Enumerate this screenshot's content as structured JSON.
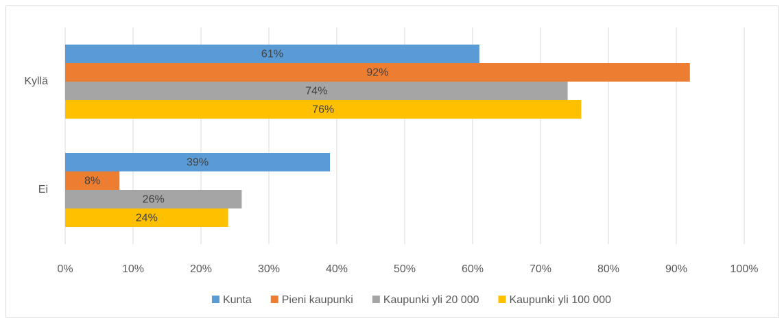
{
  "chart_data": {
    "type": "bar",
    "orientation": "horizontal",
    "categories": [
      "Kyllä",
      "Ei"
    ],
    "series": [
      {
        "name": "Kunta",
        "color": "#5b9bd5",
        "values": [
          61,
          39
        ],
        "value_labels": [
          "61%",
          "39%"
        ]
      },
      {
        "name": "Pieni kaupunki",
        "color": "#ed7d31",
        "values": [
          92,
          8
        ],
        "value_labels": [
          "92%",
          "8%"
        ]
      },
      {
        "name": "Kaupunki yli 20 000",
        "color": "#a5a5a5",
        "values": [
          74,
          26
        ],
        "value_labels": [
          "74%",
          "26%"
        ]
      },
      {
        "name": "Kaupunki yli 100 000",
        "color": "#ffc000",
        "values": [
          76,
          24
        ],
        "value_labels": [
          "76%",
          "24%"
        ]
      }
    ],
    "xlim": [
      0,
      100
    ],
    "xticks": [
      {
        "value": 0,
        "label": "0%"
      },
      {
        "value": 10,
        "label": "10%"
      },
      {
        "value": 20,
        "label": "20%"
      },
      {
        "value": 30,
        "label": "30%"
      },
      {
        "value": 40,
        "label": "40%"
      },
      {
        "value": 50,
        "label": "50%"
      },
      {
        "value": 60,
        "label": "60%"
      },
      {
        "value": 70,
        "label": "70%"
      },
      {
        "value": 80,
        "label": "80%"
      },
      {
        "value": 90,
        "label": "90%"
      },
      {
        "value": 100,
        "label": "100%"
      }
    ],
    "grid": true,
    "legend": "bottom"
  }
}
